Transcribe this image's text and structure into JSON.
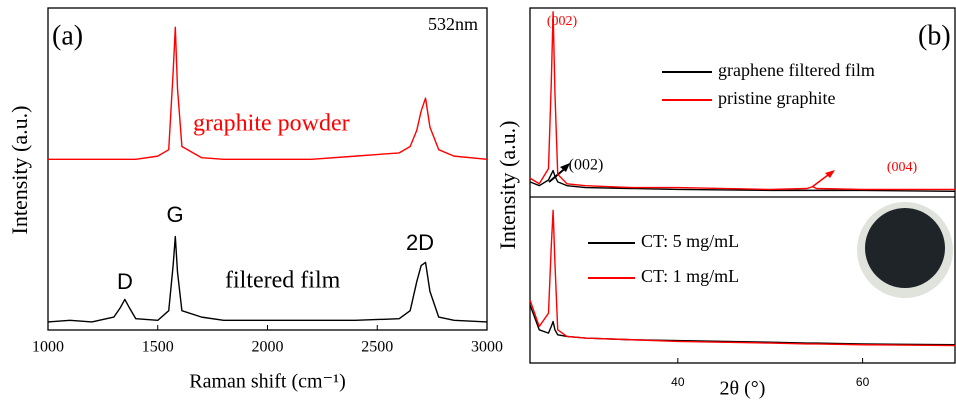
{
  "chart_data": [
    {
      "type": "line",
      "x_label": "Raman shift (cm⁻¹)",
      "y_label": "Intensity (a.u.)",
      "x": [
        1000,
        1100,
        1200,
        1300,
        1330,
        1350,
        1370,
        1400,
        1500,
        1550,
        1570,
        1580,
        1590,
        1610,
        1700,
        1800,
        2000,
        2200,
        2400,
        2600,
        2650,
        2680,
        2700,
        2720,
        2740,
        2780,
        2850,
        3000
      ],
      "series": [
        {
          "name": "graphite powder",
          "color": "#ff0000",
          "values": [
            53,
            53,
            53,
            53,
            53,
            53,
            53,
            53,
            54,
            56,
            80,
            94,
            75,
            57,
            53.5,
            53,
            53,
            53,
            54,
            55,
            57,
            62,
            68,
            72,
            63,
            56,
            54,
            53
          ]
        },
        {
          "name": "filtered film",
          "color": "#000000",
          "values": [
            2.5,
            3,
            2.5,
            4,
            7,
            9.5,
            7,
            3.5,
            3,
            6,
            20,
            29,
            18,
            6,
            4,
            3,
            3,
            3,
            3,
            3.5,
            6,
            15,
            20,
            21,
            12,
            4,
            3,
            2.5
          ]
        }
      ],
      "xlim": [
        1000,
        3000
      ],
      "xticks": [
        1000,
        1500,
        2000,
        2500,
        3000
      ],
      "ylim": [
        0,
        100
      ],
      "annotations": [
        {
          "text": "(a)",
          "color": "#000000"
        },
        {
          "text": "532nm",
          "color": "#000000"
        },
        {
          "text": "D",
          "color": "#000000"
        },
        {
          "text": "G",
          "color": "#000000"
        },
        {
          "text": "2D",
          "color": "#000000"
        }
      ]
    },
    {
      "type": "line",
      "y_label": "Intensity (a.u.)",
      "x": [
        24,
        25,
        26,
        26.3,
        26.5,
        26.7,
        27,
        28,
        30,
        35,
        40,
        50,
        54,
        54.6,
        55,
        60,
        70
      ],
      "series": [
        {
          "name": "graphene filtered film",
          "color": "#000000",
          "values": [
            8,
            6,
            9,
            12,
            14,
            11,
            8,
            6,
            5,
            4.5,
            4,
            3.5,
            3.5,
            3.5,
            3.5,
            3.5,
            3
          ]
        },
        {
          "name": "pristine graphite",
          "color": "#ff0000",
          "values": [
            10,
            7,
            15,
            60,
            98,
            55,
            12,
            7,
            6,
            5,
            5,
            4,
            4.5,
            5.5,
            4.5,
            4,
            4
          ]
        }
      ],
      "xlim": [
        24,
        70
      ],
      "ylim": [
        0,
        100
      ],
      "annotations": [
        {
          "text": "(b)",
          "color": "#000000"
        },
        {
          "text": "(002)",
          "color": "#ff0000"
        },
        {
          "text": "(002)",
          "color": "#000000"
        },
        {
          "text": "(004)",
          "color": "#ff0000"
        }
      ]
    },
    {
      "type": "line",
      "x_label": "2θ (°)",
      "x": [
        24,
        25,
        26,
        26.3,
        26.5,
        26.7,
        27,
        28,
        30,
        35,
        40,
        50,
        54,
        54.6,
        55,
        60,
        70
      ],
      "series": [
        {
          "name": "CT: 5 mg/mL",
          "color": "#000000",
          "values": [
            35,
            20,
            18,
            22,
            25,
            20,
            17,
            16,
            15,
            14,
            13.5,
            12.5,
            12,
            12,
            12,
            11.5,
            11
          ]
        },
        {
          "name": "CT: 1 mg/mL",
          "color": "#ff0000",
          "values": [
            38,
            22,
            30,
            70,
            92,
            60,
            20,
            16,
            15,
            14,
            13,
            12,
            11.5,
            11.5,
            11.5,
            11,
            10.5
          ]
        }
      ],
      "xlim": [
        24,
        70
      ],
      "xticks": [
        40,
        60
      ],
      "ylim": [
        0,
        100
      ]
    }
  ]
}
